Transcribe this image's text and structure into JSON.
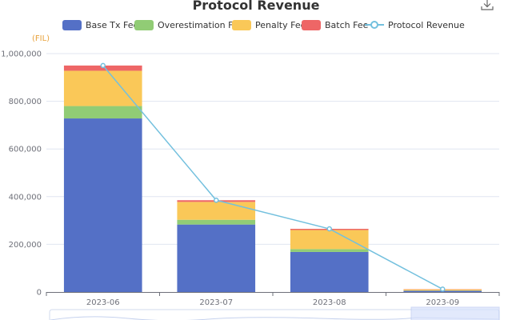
{
  "chart_data": {
    "type": "bar",
    "title": "Protocol Revenue",
    "unit": "(FIL)",
    "categories": [
      "2023-06",
      "2023-07",
      "2023-08",
      "2023-09"
    ],
    "series": [
      {
        "name": "Base Tx Fee",
        "type": "bar",
        "stack": true,
        "color": "#5470c6",
        "values": [
          728000,
          283000,
          168000,
          5000
        ]
      },
      {
        "name": "Overestimation Fee",
        "type": "bar",
        "stack": true,
        "color": "#91cc75",
        "values": [
          52000,
          20000,
          12000,
          1000
        ]
      },
      {
        "name": "Penalty Fee",
        "type": "bar",
        "stack": true,
        "color": "#fac858",
        "values": [
          148000,
          75000,
          80000,
          5000
        ]
      },
      {
        "name": "Batch Fee",
        "type": "bar",
        "stack": true,
        "color": "#ee6666",
        "values": [
          22000,
          7000,
          5000,
          1000
        ]
      },
      {
        "name": "Protocol Revenue",
        "type": "line",
        "color": "#73c0de",
        "values": [
          950000,
          385000,
          265000,
          12000
        ]
      }
    ],
    "y_ticks": [
      "0",
      "200,000",
      "400,000",
      "600,000",
      "800,000",
      "1,000,000"
    ],
    "ylim": [
      0,
      1000000
    ],
    "grid": true,
    "legend_position": "top"
  }
}
